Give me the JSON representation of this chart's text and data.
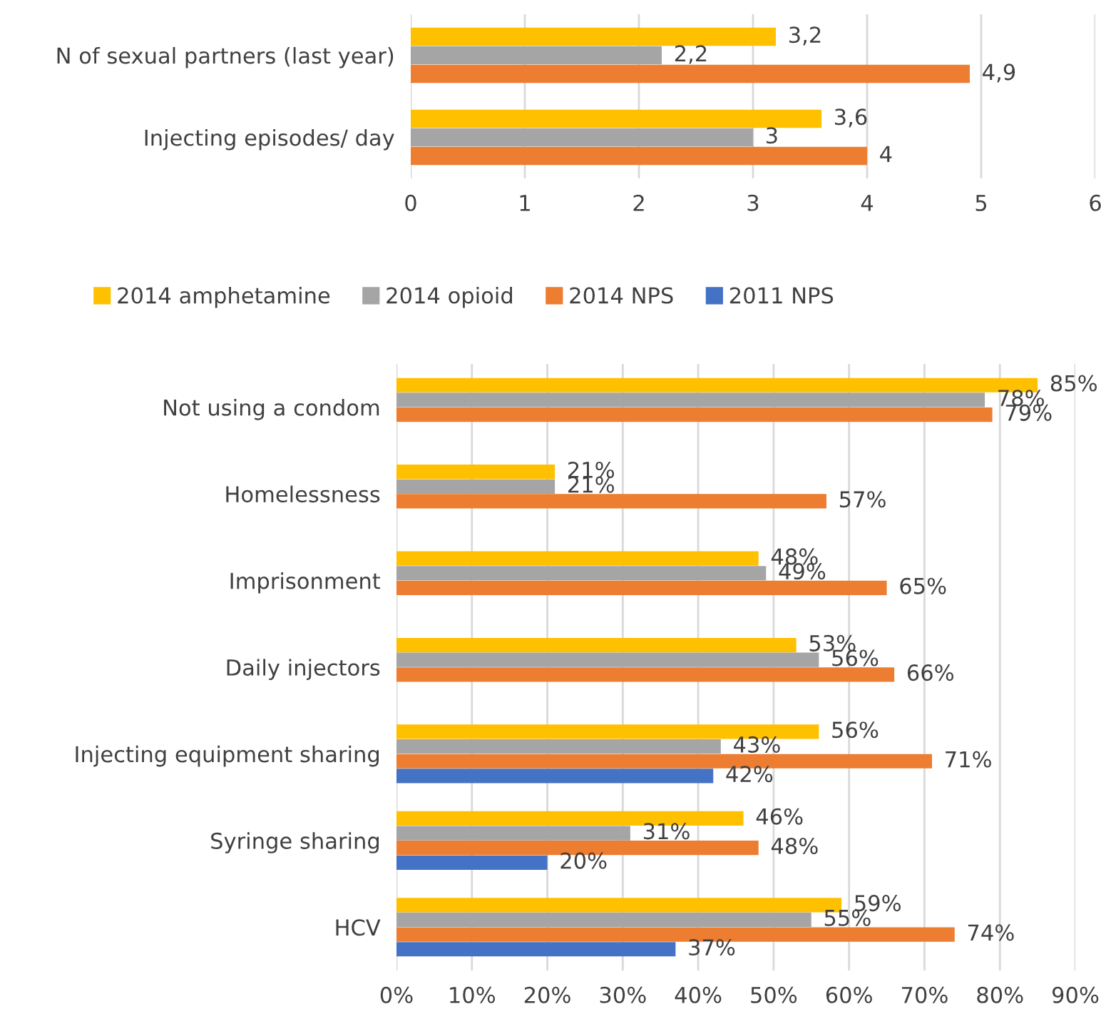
{
  "chart_data": [
    {
      "type": "bar",
      "orientation": "horizontal",
      "categories": [
        "N of sexual partners (last year)",
        "Injecting episodes/ day"
      ],
      "series": [
        {
          "color": "#ffc000",
          "values": [
            3.2,
            3.6
          ],
          "value_labels": [
            "3,2",
            "3,6"
          ]
        },
        {
          "color": "#a5a5a5",
          "values": [
            2.2,
            3
          ],
          "value_labels": [
            "2,2",
            "3"
          ]
        },
        {
          "color": "#ed7d31",
          "values": [
            4.9,
            4
          ],
          "value_labels": [
            "4,9",
            "4"
          ]
        }
      ],
      "xlim": [
        0,
        6
      ],
      "xticks": [
        0,
        1,
        2,
        3,
        4,
        5,
        6
      ],
      "grid": "x",
      "legend": false
    },
    {
      "type": "bar",
      "orientation": "horizontal",
      "categories": [
        "Not using a condom",
        "Homelessness",
        "Imprisonment",
        "Daily injectors",
        "Injecting equipment sharing",
        "Syringe sharing",
        "HCV"
      ],
      "series": [
        {
          "name": "2014 amphetamine",
          "color": "#ffc000",
          "values": [
            85,
            21,
            48,
            53,
            56,
            46,
            59
          ],
          "value_labels": [
            "85%",
            "21%",
            "48%",
            "53%",
            "56%",
            "46%",
            "59%"
          ]
        },
        {
          "name": "2014 opioid",
          "color": "#a5a5a5",
          "values": [
            78,
            21,
            49,
            56,
            43,
            31,
            55
          ],
          "value_labels": [
            "78%",
            "21%",
            "49%",
            "56%",
            "43%",
            "31%",
            "55%"
          ]
        },
        {
          "name": "2014 NPS",
          "color": "#ed7d31",
          "values": [
            79,
            57,
            65,
            66,
            71,
            48,
            74
          ],
          "value_labels": [
            "79%",
            "57%",
            "65%",
            "66%",
            "71%",
            "48%",
            "74%"
          ]
        },
        {
          "name": "2011 NPS",
          "color": "#4472c4",
          "values": [
            null,
            null,
            null,
            null,
            42,
            20,
            37
          ],
          "value_labels": [
            null,
            null,
            null,
            null,
            "42%",
            "20%",
            "37%"
          ]
        }
      ],
      "xlim": [
        0,
        90
      ],
      "xticks": [
        {
          "value": 0,
          "label": "0%"
        },
        {
          "value": 10,
          "label": "10%"
        },
        {
          "value": 20,
          "label": "20%"
        },
        {
          "value": 30,
          "label": "30%"
        },
        {
          "value": 40,
          "label": "40%"
        },
        {
          "value": 50,
          "label": "50%"
        },
        {
          "value": 60,
          "label": "60%"
        },
        {
          "value": 70,
          "label": "70%"
        },
        {
          "value": 80,
          "label": "80%"
        },
        {
          "value": 90,
          "label": "90%"
        }
      ],
      "grid": "x",
      "legend": "top"
    }
  ]
}
